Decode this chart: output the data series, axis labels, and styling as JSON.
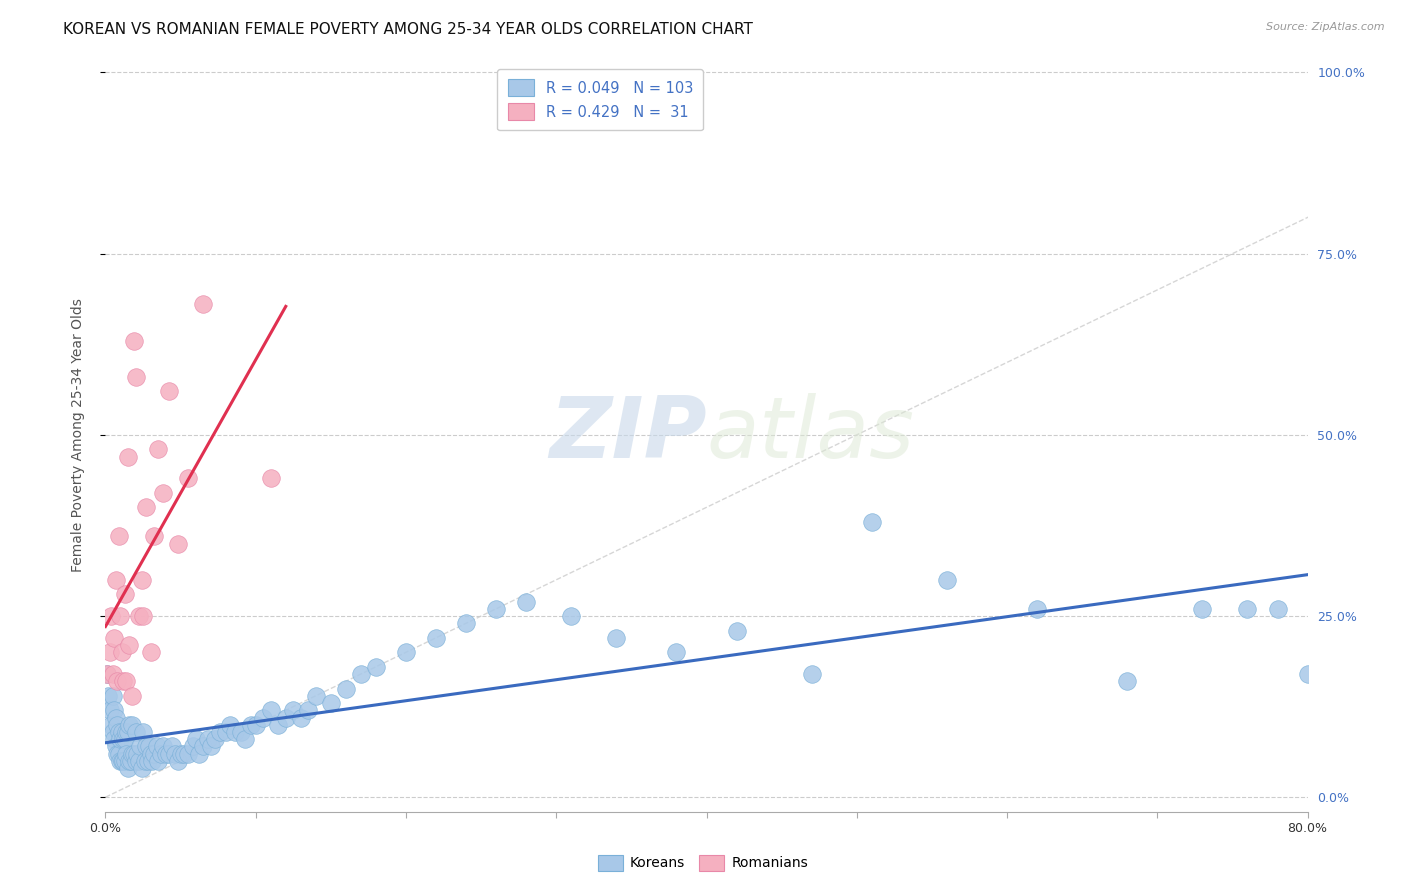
{
  "title": "KOREAN VS ROMANIAN FEMALE POVERTY AMONG 25-34 YEAR OLDS CORRELATION CHART",
  "source": "Source: ZipAtlas.com",
  "ylabel": "Female Poverty Among 25-34 Year Olds",
  "xlim": [
    0.0,
    0.8
  ],
  "ylim": [
    -0.02,
    1.02
  ],
  "xticks": [
    0.0,
    0.1,
    0.2,
    0.3,
    0.4,
    0.5,
    0.6,
    0.7,
    0.8
  ],
  "xticklabels": [
    "0.0%",
    "",
    "",
    "",
    "",
    "",
    "",
    "",
    "80.0%"
  ],
  "yticks": [
    0.0,
    0.25,
    0.5,
    0.75,
    1.0
  ],
  "yticklabels_right": [
    "0.0%",
    "25.0%",
    "50.0%",
    "75.0%",
    "100.0%"
  ],
  "korean_R": 0.049,
  "korean_N": 103,
  "romanian_R": 0.429,
  "romanian_N": 31,
  "korean_color": "#a8c8e8",
  "romanian_color": "#f5b0c0",
  "korean_line_color": "#3a6abf",
  "romanian_line_color": "#e03050",
  "diagonal_color": "#cccccc",
  "background_color": "#ffffff",
  "watermark_zip": "ZIP",
  "watermark_atlas": "atlas",
  "title_fontsize": 11,
  "axis_label_fontsize": 10,
  "tick_fontsize": 9,
  "korean_x": [
    0.001,
    0.002,
    0.003,
    0.004,
    0.005,
    0.005,
    0.006,
    0.006,
    0.007,
    0.007,
    0.008,
    0.008,
    0.009,
    0.009,
    0.01,
    0.01,
    0.011,
    0.011,
    0.012,
    0.012,
    0.013,
    0.013,
    0.014,
    0.014,
    0.015,
    0.015,
    0.016,
    0.016,
    0.017,
    0.018,
    0.018,
    0.019,
    0.02,
    0.02,
    0.021,
    0.022,
    0.023,
    0.024,
    0.025,
    0.026,
    0.027,
    0.028,
    0.029,
    0.03,
    0.031,
    0.032,
    0.034,
    0.035,
    0.037,
    0.038,
    0.04,
    0.042,
    0.044,
    0.046,
    0.048,
    0.05,
    0.052,
    0.055,
    0.058,
    0.06,
    0.062,
    0.065,
    0.068,
    0.07,
    0.073,
    0.076,
    0.08,
    0.083,
    0.086,
    0.09,
    0.093,
    0.097,
    0.1,
    0.105,
    0.11,
    0.115,
    0.12,
    0.125,
    0.13,
    0.135,
    0.14,
    0.15,
    0.16,
    0.17,
    0.18,
    0.2,
    0.22,
    0.24,
    0.26,
    0.28,
    0.31,
    0.34,
    0.38,
    0.42,
    0.47,
    0.51,
    0.56,
    0.62,
    0.68,
    0.73,
    0.76,
    0.78,
    0.8
  ],
  "korean_y": [
    0.17,
    0.14,
    0.12,
    0.1,
    0.09,
    0.14,
    0.08,
    0.12,
    0.07,
    0.11,
    0.06,
    0.1,
    0.06,
    0.09,
    0.05,
    0.08,
    0.05,
    0.09,
    0.05,
    0.08,
    0.05,
    0.08,
    0.06,
    0.09,
    0.04,
    0.09,
    0.05,
    0.1,
    0.05,
    0.06,
    0.1,
    0.06,
    0.05,
    0.09,
    0.06,
    0.05,
    0.07,
    0.04,
    0.09,
    0.05,
    0.07,
    0.05,
    0.07,
    0.06,
    0.05,
    0.06,
    0.07,
    0.05,
    0.06,
    0.07,
    0.06,
    0.06,
    0.07,
    0.06,
    0.05,
    0.06,
    0.06,
    0.06,
    0.07,
    0.08,
    0.06,
    0.07,
    0.08,
    0.07,
    0.08,
    0.09,
    0.09,
    0.1,
    0.09,
    0.09,
    0.08,
    0.1,
    0.1,
    0.11,
    0.12,
    0.1,
    0.11,
    0.12,
    0.11,
    0.12,
    0.14,
    0.13,
    0.15,
    0.17,
    0.18,
    0.2,
    0.22,
    0.24,
    0.26,
    0.27,
    0.25,
    0.22,
    0.2,
    0.23,
    0.17,
    0.38,
    0.3,
    0.26,
    0.16,
    0.26,
    0.26,
    0.26,
    0.17
  ],
  "romanian_x": [
    0.001,
    0.003,
    0.004,
    0.005,
    0.006,
    0.007,
    0.008,
    0.009,
    0.01,
    0.011,
    0.012,
    0.013,
    0.014,
    0.015,
    0.016,
    0.018,
    0.019,
    0.02,
    0.022,
    0.024,
    0.025,
    0.027,
    0.03,
    0.032,
    0.035,
    0.038,
    0.042,
    0.048,
    0.055,
    0.065,
    0.11
  ],
  "romanian_y": [
    0.17,
    0.2,
    0.25,
    0.17,
    0.22,
    0.3,
    0.16,
    0.36,
    0.25,
    0.2,
    0.16,
    0.28,
    0.16,
    0.47,
    0.21,
    0.14,
    0.63,
    0.58,
    0.25,
    0.3,
    0.25,
    0.4,
    0.2,
    0.36,
    0.48,
    0.42,
    0.56,
    0.35,
    0.44,
    0.68,
    0.44
  ]
}
